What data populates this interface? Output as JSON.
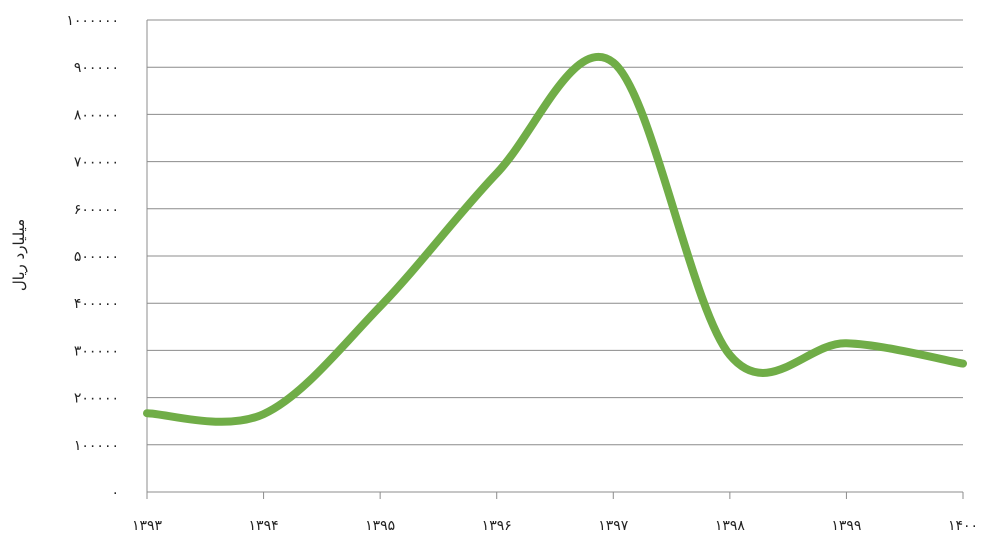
{
  "chart_data": {
    "type": "line",
    "title": "",
    "xlabel": "",
    "ylabel": "میلیارد ریال",
    "ylim": [
      0,
      1000000
    ],
    "y_ticks": [
      "۰",
      "۱۰۰۰۰۰",
      "۲۰۰۰۰۰",
      "۳۰۰۰۰۰",
      "۴۰۰۰۰۰",
      "۵۰۰۰۰۰",
      "۶۰۰۰۰۰",
      "۷۰۰۰۰۰",
      "۸۰۰۰۰۰",
      "۹۰۰۰۰۰",
      "۱۰۰۰۰۰۰"
    ],
    "categories": [
      "۱۳۹۳",
      "۱۳۹۴",
      "۱۳۹۵",
      "۱۳۹۶",
      "۱۳۹۷",
      "۱۳۹۸",
      "۱۳۹۹",
      "۱۴۰۰"
    ],
    "smooth": true,
    "grid": true,
    "legend": "none",
    "series": [
      {
        "color": "#70ad47",
        "values": [
          167000,
          165000,
          393000,
          675000,
          910000,
          290000,
          315000,
          272000
        ]
      }
    ]
  }
}
